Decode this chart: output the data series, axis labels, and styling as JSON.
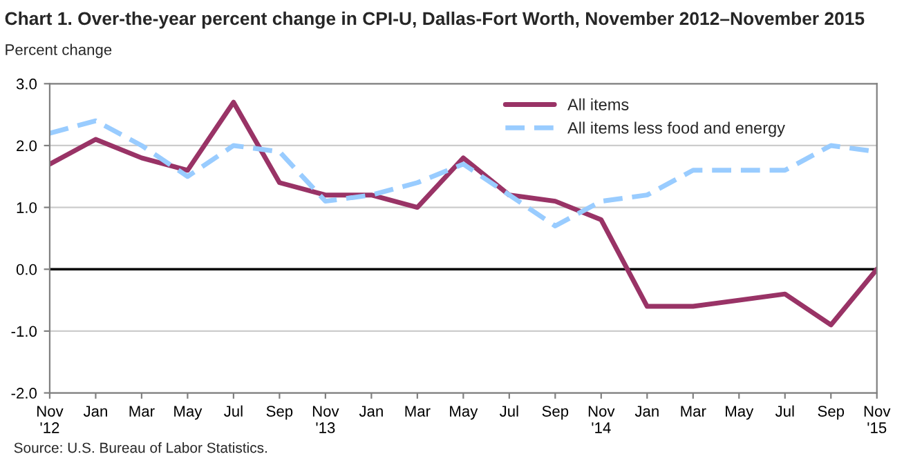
{
  "chart_data": {
    "type": "line",
    "title": "Chart 1. Over-the-year percent change in CPI-U, Dallas-Fort Worth, November 2012–November 2015",
    "ylabel": "Percent change",
    "categories": [
      "Nov\n'12",
      "Jan",
      "Mar",
      "May",
      "Jul",
      "Sep",
      "Nov\n'13",
      "Jan",
      "Mar",
      "May",
      "Jul",
      "Sep",
      "Nov\n'14",
      "Jan",
      "Mar",
      "May",
      "Jul",
      "Sep",
      "Nov\n'15"
    ],
    "series": [
      {
        "name": "All items",
        "color": "#993366",
        "line_style": "solid",
        "values": [
          1.7,
          2.1,
          1.8,
          1.6,
          2.7,
          1.4,
          1.2,
          1.2,
          1.0,
          1.8,
          1.2,
          1.1,
          0.8,
          -0.6,
          -0.6,
          -0.5,
          -0.4,
          -0.9,
          0.0
        ]
      },
      {
        "name": "All items less food and energy",
        "color": "#99ccff",
        "line_style": "dashed",
        "values": [
          2.2,
          2.4,
          2.0,
          1.5,
          2.0,
          1.9,
          1.1,
          1.2,
          1.4,
          1.7,
          1.2,
          0.7,
          1.1,
          1.2,
          1.6,
          1.6,
          1.6,
          2.0,
          1.9
        ]
      }
    ],
    "ylim": [
      -2.0,
      3.0
    ],
    "yticks": [
      {
        "value": -2.0,
        "label": "-2.0"
      },
      {
        "value": -1.0,
        "label": "-1.0"
      },
      {
        "value": 0.0,
        "label": "0.0"
      },
      {
        "value": 1.0,
        "label": "1.0"
      },
      {
        "value": 2.0,
        "label": "2.0"
      },
      {
        "value": 3.0,
        "label": "3.0"
      }
    ],
    "ref_lines": [
      {
        "axis": "y",
        "value": 0.0,
        "color": "#000000"
      }
    ],
    "grid": "y",
    "legend": "top right",
    "marker": "none",
    "annotations": [
      "Source: U.S. Bureau of Labor Statistics."
    ]
  }
}
